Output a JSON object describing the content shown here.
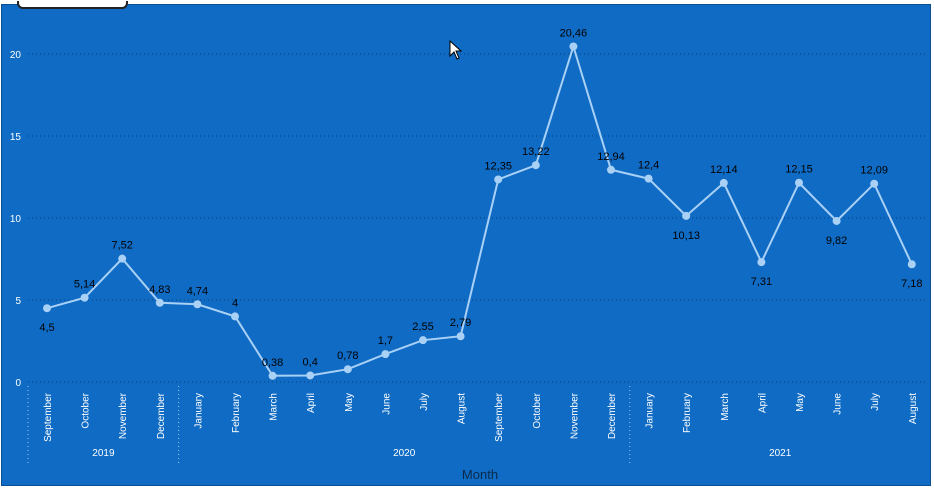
{
  "colors": {
    "background": "#0f6bc4",
    "line": "#a9d0f5",
    "gridline": "#0a3f78",
    "data_label": "#000000",
    "tick_label": "#ffffff",
    "axis_title": "#0a2a4a"
  },
  "chart_data": {
    "type": "line",
    "xlabel": "Month",
    "ylabel": "",
    "ylim": [
      0,
      22
    ],
    "yticks": [
      0,
      5,
      10,
      15,
      20
    ],
    "grid": true,
    "categories": [
      "September",
      "October",
      "November",
      "December",
      "January",
      "February",
      "March",
      "April",
      "May",
      "June",
      "July",
      "August",
      "September",
      "October",
      "November",
      "December",
      "January",
      "February",
      "March",
      "April",
      "May",
      "June",
      "July",
      "August"
    ],
    "years": [
      {
        "label": "2019",
        "start": 0,
        "end": 3
      },
      {
        "label": "2020",
        "start": 4,
        "end": 15
      },
      {
        "label": "2021",
        "start": 16,
        "end": 23
      }
    ],
    "values": [
      4.5,
      5.14,
      7.52,
      4.83,
      4.74,
      4,
      0.38,
      0.4,
      0.78,
      1.7,
      2.55,
      2.79,
      12.35,
      13.22,
      20.46,
      12.94,
      12.4,
      10.13,
      12.14,
      7.31,
      12.15,
      9.82,
      12.09,
      7.18
    ],
    "data_labels": [
      "4,5",
      "5,14",
      "7,52",
      "4,83",
      "4,74",
      "4",
      "0,38",
      "0,4",
      "0,78",
      "1,7",
      "2,55",
      "2,79",
      "12,35",
      "13,22",
      "20,46",
      "12,94",
      "12,4",
      "10,13",
      "12,14",
      "7,31",
      "12,15",
      "9,82",
      "12,09",
      "7,18"
    ],
    "label_positions": [
      "below",
      "above",
      "above",
      "above",
      "above",
      "above",
      "above",
      "above",
      "above",
      "above",
      "above",
      "above",
      "above",
      "above",
      "above",
      "above",
      "above",
      "below",
      "above",
      "below",
      "above",
      "below",
      "above",
      "below"
    ]
  }
}
